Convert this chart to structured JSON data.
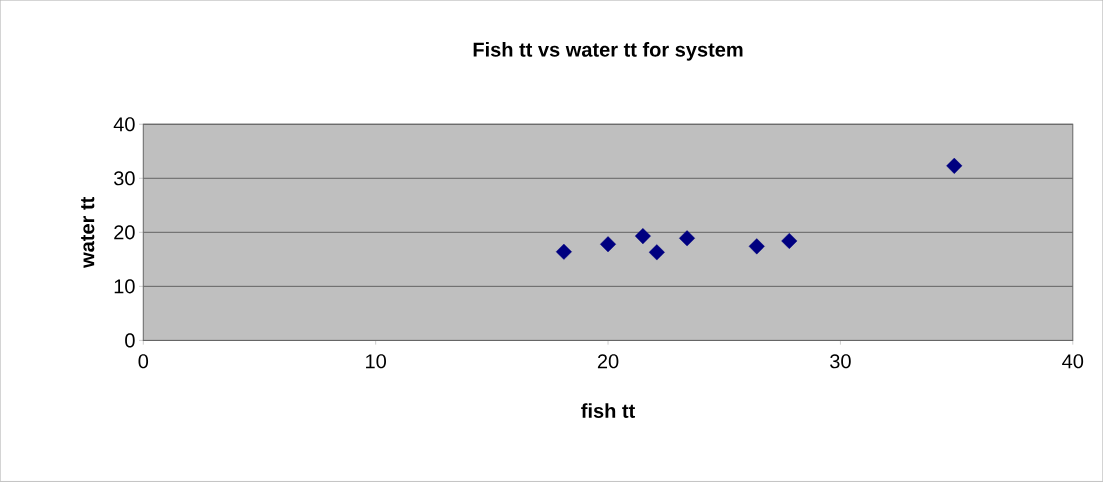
{
  "chart_data": {
    "type": "scatter",
    "title": "Fish tt vs water tt for system",
    "xlabel": "fish tt",
    "ylabel": "water tt",
    "x": [
      18.1,
      20.0,
      21.5,
      22.1,
      23.4,
      26.4,
      27.8,
      34.9
    ],
    "series": [
      {
        "color": "#000080",
        "values": [
          16.4,
          17.8,
          19.3,
          16.3,
          18.9,
          17.4,
          18.4,
          32.3
        ]
      }
    ],
    "xlim": [
      0,
      40
    ],
    "ylim": [
      0,
      40
    ],
    "xticks": [
      0,
      10,
      20,
      30,
      40
    ],
    "yticks": [
      0,
      10,
      20,
      30,
      40
    ],
    "grid": "y",
    "marker": "diamond"
  }
}
